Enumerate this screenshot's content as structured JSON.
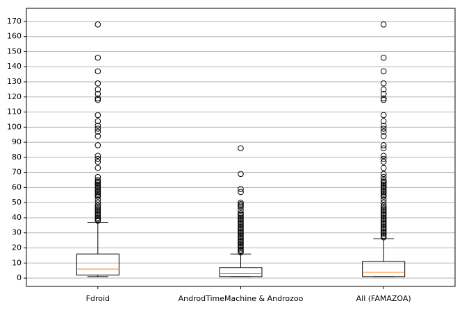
{
  "chart_data": {
    "type": "box",
    "categories": [
      "Fdroid",
      "AndrodTimeMachine & Androzoo",
      "All (FAMAZOA)"
    ],
    "boxes": [
      {
        "whislo": 1,
        "q1": 2,
        "med": 6,
        "q3": 16,
        "whishi": 37,
        "fliers": [
          38,
          39,
          40,
          41,
          42,
          43,
          44,
          45,
          46,
          47,
          48,
          50,
          52,
          54,
          55,
          56,
          57,
          58,
          59,
          60,
          61,
          62,
          63,
          64,
          65,
          67,
          73,
          77,
          79,
          81,
          88,
          94,
          97,
          99,
          101,
          104,
          108,
          118,
          119,
          122,
          125,
          129,
          137,
          146,
          168
        ]
      },
      {
        "whislo": 1,
        "q1": 1,
        "med": 3,
        "q3": 7,
        "whishi": 16,
        "fliers": [
          17,
          18,
          19,
          20,
          21,
          22,
          23,
          24,
          25,
          26,
          27,
          28,
          29,
          30,
          31,
          32,
          33,
          34,
          35,
          36,
          37,
          38,
          39,
          40,
          41,
          42,
          43,
          45,
          47,
          48,
          49,
          50,
          57,
          59,
          69,
          86
        ]
      },
      {
        "whislo": 1,
        "q1": 1,
        "med": 4,
        "q3": 11,
        "whishi": 26,
        "fliers": [
          27,
          28,
          29,
          30,
          31,
          32,
          33,
          34,
          35,
          36,
          37,
          38,
          39,
          40,
          41,
          42,
          43,
          44,
          45,
          46,
          47,
          48,
          50,
          52,
          54,
          55,
          56,
          57,
          58,
          59,
          60,
          61,
          62,
          63,
          64,
          65,
          67,
          69,
          73,
          77,
          79,
          81,
          86,
          88,
          94,
          97,
          99,
          101,
          104,
          108,
          118,
          119,
          122,
          125,
          129,
          137,
          146,
          168
        ]
      }
    ],
    "box_color": "#000000",
    "median_color": "#ff7f0e",
    "ylim": [
      -5.5,
      178.7
    ],
    "yticks": [
      0,
      10,
      20,
      30,
      40,
      50,
      60,
      70,
      80,
      90,
      100,
      110,
      120,
      130,
      140,
      150,
      160,
      170
    ],
    "grid": true
  }
}
